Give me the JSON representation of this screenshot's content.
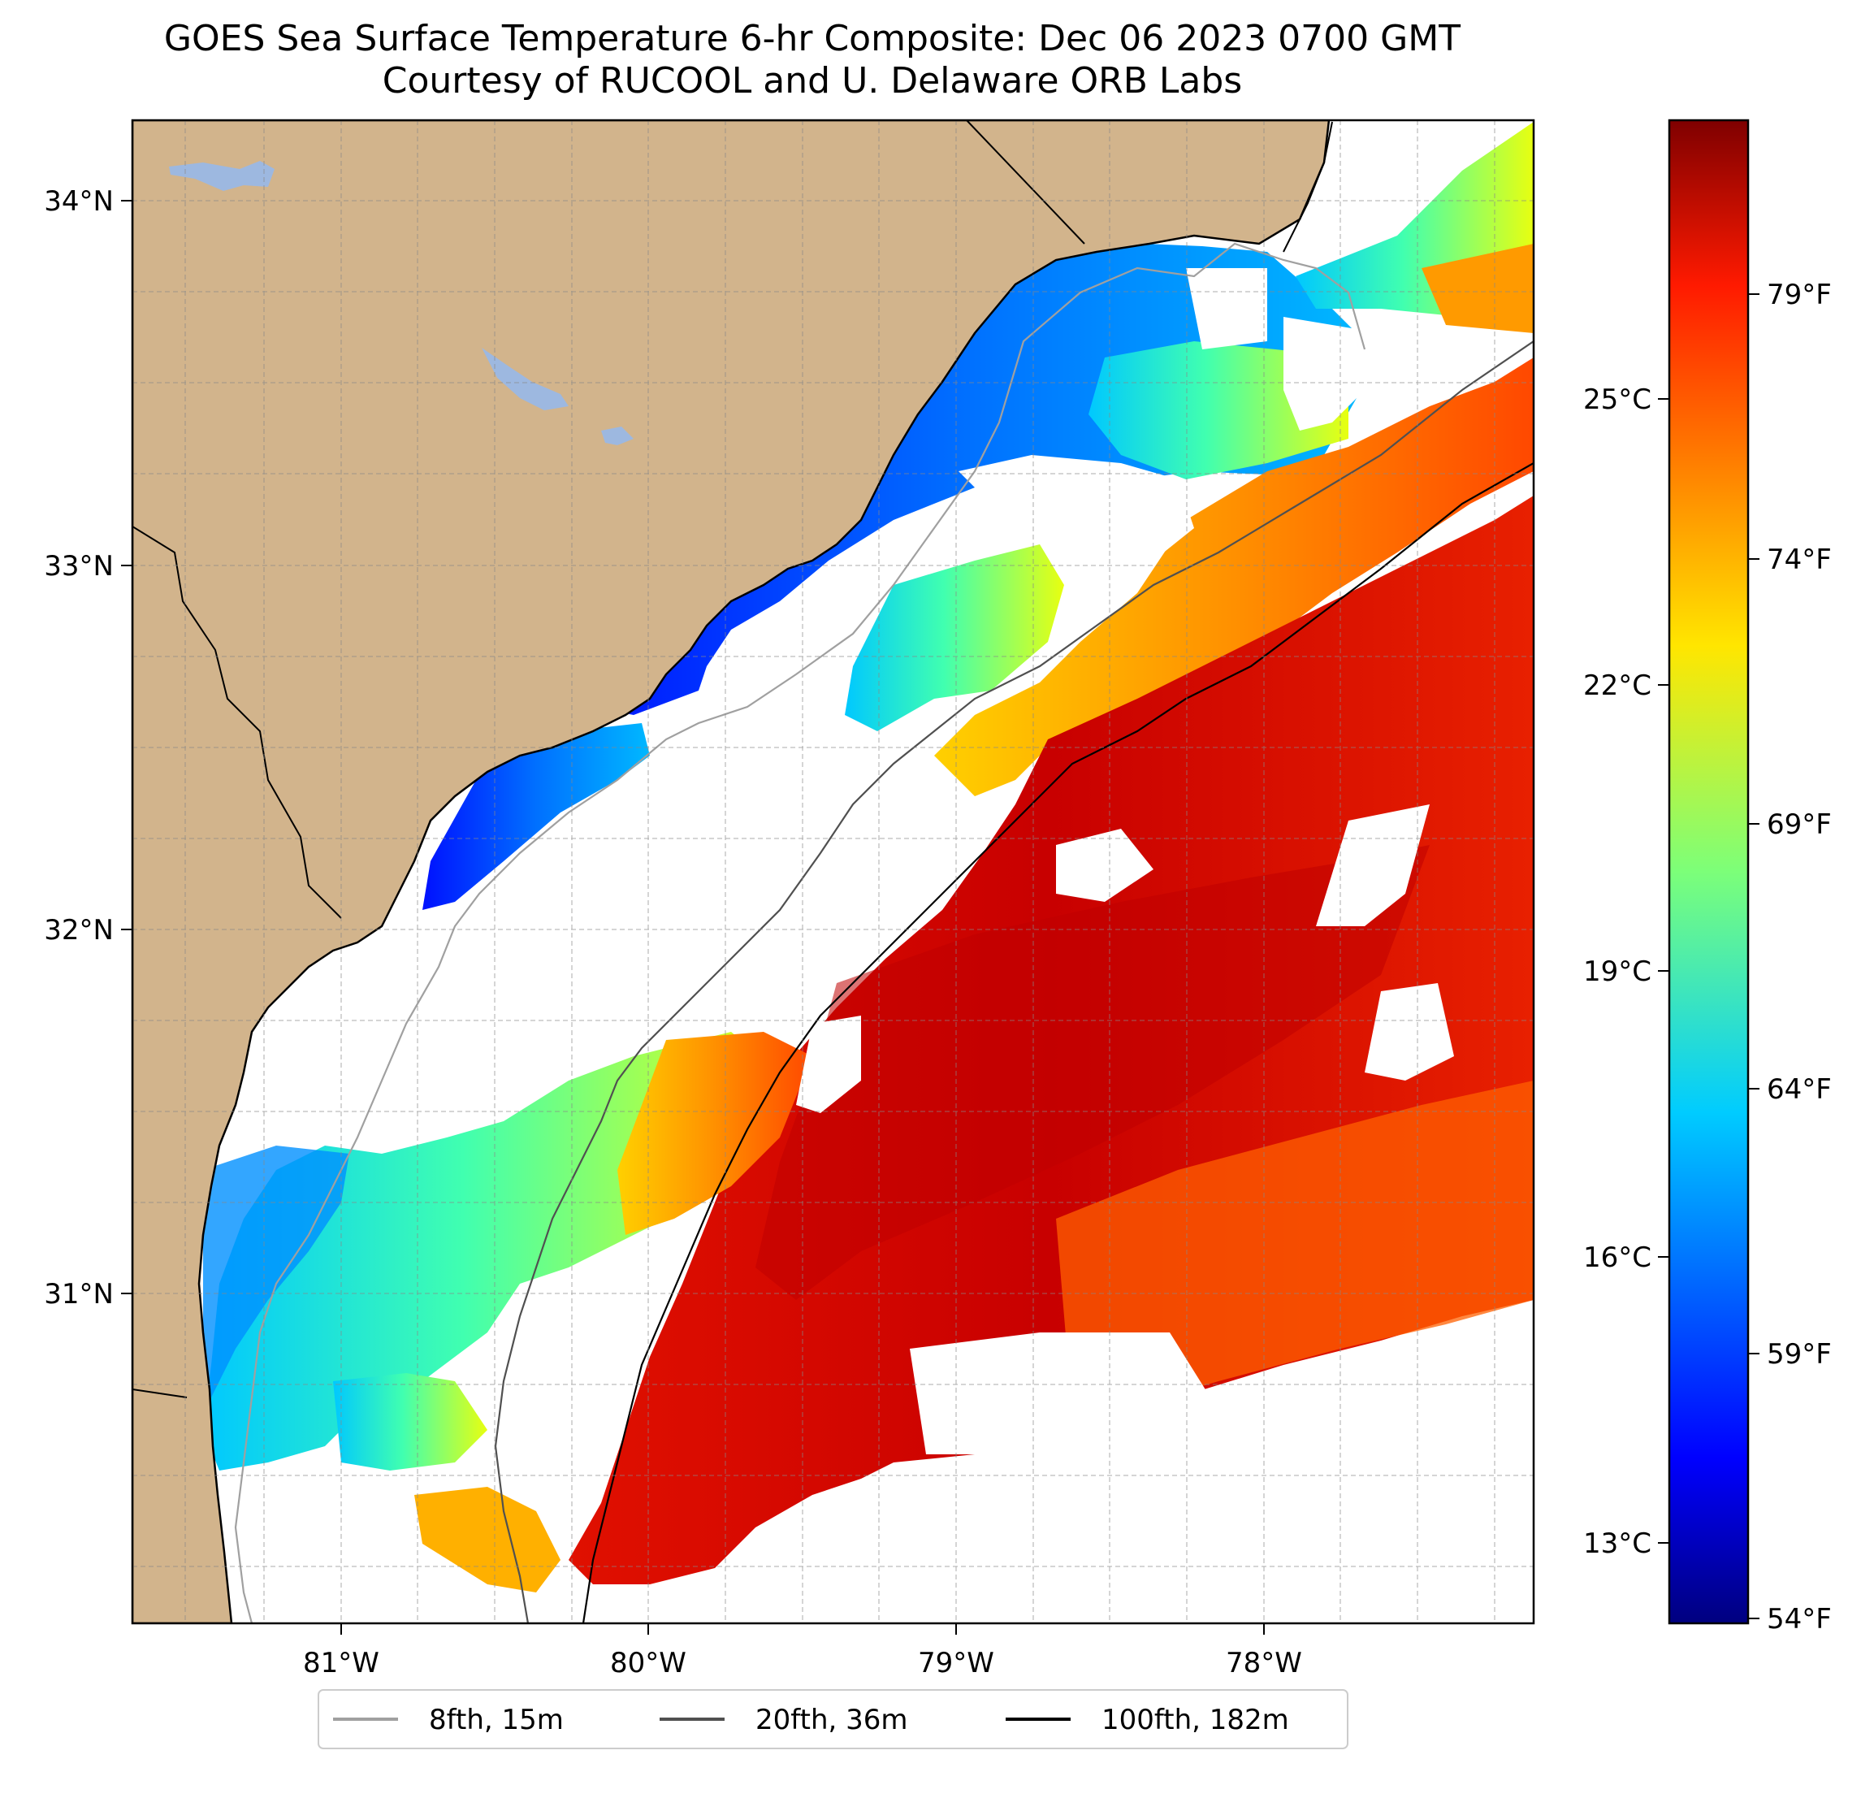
{
  "title": "GOES Sea Surface Temperature 6-hr Composite: Dec 06 2023 0700 GMT",
  "subtitle": "Courtesy of RUCOOL and U. Delaware ORB Labs",
  "map": {
    "region": "South Carolina / Georgia coast, western Atlantic",
    "lon_range": [
      -81.68,
      -77.12
    ],
    "lat_range": [
      30.08,
      34.22
    ],
    "lon_ticks": [
      "81°W",
      "80°W",
      "79°W",
      "78°W"
    ],
    "lat_ticks": [
      "34°N",
      "33°N",
      "32°N",
      "31°N"
    ],
    "colors": {
      "land": "#D2B48C",
      "ocean_nodata": "#ffffff",
      "lakes": "#9DB8E0",
      "coastline": "#000000"
    }
  },
  "colorbar": {
    "celsius_labels": [
      "25°C",
      "22°C",
      "19°C",
      "16°C",
      "13°C"
    ],
    "fahrenheit_labels": [
      "79°F",
      "74°F",
      "69°F",
      "64°F",
      "59°F",
      "54°F"
    ],
    "range_f": [
      54,
      83
    ],
    "colormap": "jet"
  },
  "legend": {
    "items": [
      {
        "label": "8fth, 15m",
        "color": "#a0a0a0"
      },
      {
        "label": "20fth, 36m",
        "color": "#505050"
      },
      {
        "label": "100fth, 182m",
        "color": "#000000"
      }
    ]
  }
}
